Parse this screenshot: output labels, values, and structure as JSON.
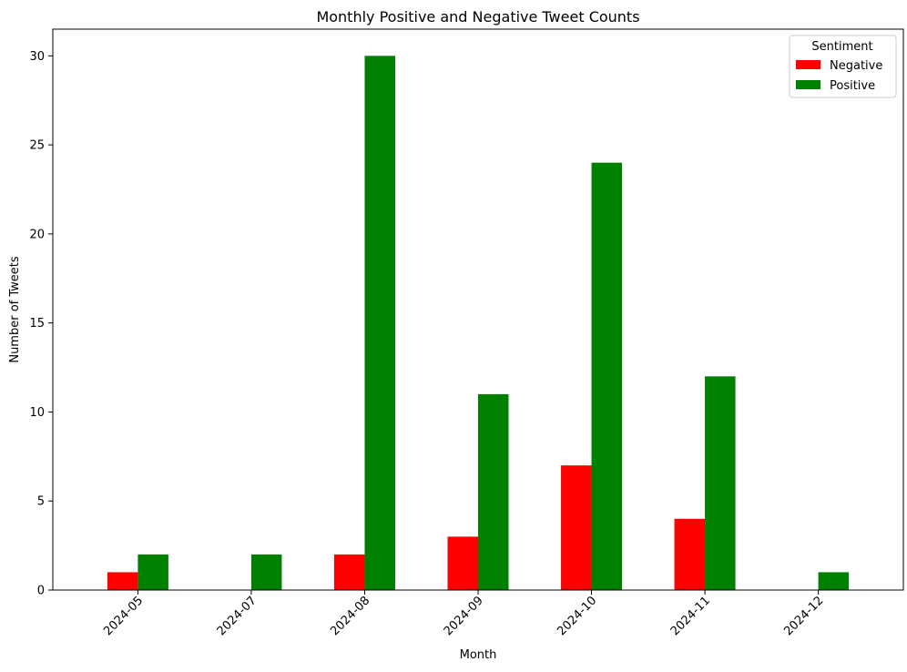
{
  "chart_data": {
    "type": "bar",
    "title": "Monthly Positive and Negative Tweet Counts",
    "xlabel": "Month",
    "ylabel": "Number of Tweets",
    "categories": [
      "2024-05",
      "2024-07",
      "2024-08",
      "2024-09",
      "2024-10",
      "2024-11",
      "2024-12"
    ],
    "series": [
      {
        "name": "Negative",
        "color": "#ff0000",
        "values": [
          1,
          0,
          2,
          3,
          7,
          4,
          0
        ]
      },
      {
        "name": "Positive",
        "color": "#008000",
        "values": [
          2,
          2,
          30,
          11,
          24,
          12,
          1
        ]
      }
    ],
    "ylim": [
      0,
      31.5
    ],
    "yticks": [
      0,
      5,
      10,
      15,
      20,
      25,
      30
    ],
    "grid": false,
    "legend": {
      "title": "Sentiment",
      "placement": "top-right"
    }
  }
}
